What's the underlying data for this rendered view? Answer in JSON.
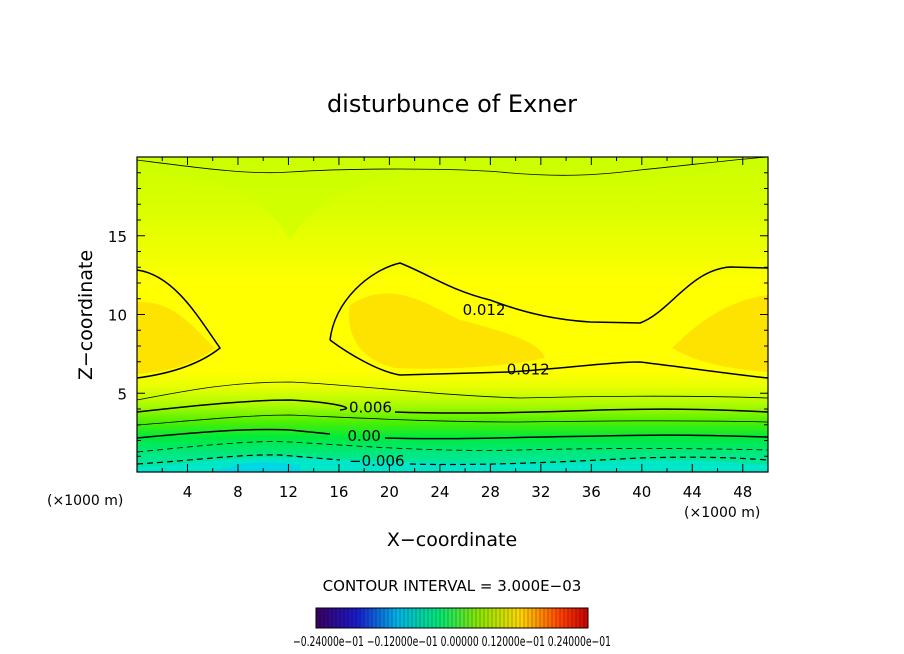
{
  "chart_data": {
    "type": "contour",
    "title": "disturbunce of Exner",
    "xlabel": "X−coordinate",
    "ylabel": "Z−coordinate",
    "x_unit_left": "(×1000 m)",
    "x_unit_right": "(×1000 m)",
    "xlim": [
      0,
      50
    ],
    "ylim": [
      0,
      20
    ],
    "x_ticks": [
      "4",
      "8",
      "12",
      "16",
      "20",
      "24",
      "28",
      "32",
      "36",
      "40",
      "44",
      "48"
    ],
    "x_tick_values": [
      4,
      8,
      12,
      16,
      20,
      24,
      28,
      32,
      36,
      40,
      44,
      48
    ],
    "y_ticks": [
      "5",
      "10",
      "15"
    ],
    "y_tick_values": [
      5,
      10,
      15
    ],
    "contour_interval_text": "CONTOUR INTERVAL = 3.000E−03",
    "contour_labels": [
      {
        "text": "0.012",
        "x": 27.5,
        "z": 10.3
      },
      {
        "text": "0.012",
        "x": 31.0,
        "z": 6.5
      },
      {
        "text": "0.006",
        "x": 18.5,
        "z": 4.1
      },
      {
        "text": "0.00",
        "x": 18.0,
        "z": 2.3
      },
      {
        "text": "−0.006",
        "x": 19.0,
        "z": 0.7
      }
    ],
    "colorbar_label": "−0.24000e−01 −0.12000e−01 0.00000 0.12000e−01 0.24000e−01",
    "colorbar_range": [
      -0.024,
      0.024
    ],
    "colors": {
      "cyan": "#00e6b4",
      "green": "#00e600",
      "yellowgreen": "#d4ff00",
      "yellow": "#ffff00",
      "orange": "#ffd700"
    }
  }
}
